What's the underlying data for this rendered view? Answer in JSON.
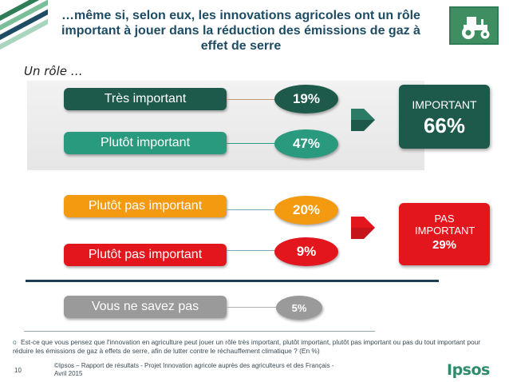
{
  "title": "…même si, selon eux, les innovations agricoles ont un rôle important à jouer dans la réduction des émissions de gaz à effet de serre",
  "subtitle": "Un rôle …",
  "icon": "tractor-icon",
  "chart_data": {
    "type": "table",
    "rows": [
      {
        "label": "Très important",
        "value": 19,
        "display": "19",
        "unit": "%",
        "color": "#1e5a4b"
      },
      {
        "label": "Plutôt important",
        "value": 47,
        "display": "47",
        "unit": "%",
        "color": "#2a9a7e"
      },
      {
        "label": "Plutôt pas important",
        "value": 20,
        "display": "20%",
        "unit": "",
        "color": "#f39a11"
      },
      {
        "label": "Plutôt pas important",
        "value": 9,
        "display": "9%",
        "unit": "",
        "color": "#e3161e"
      },
      {
        "label": "Vous ne savez pas",
        "value": 5,
        "display": "5%",
        "unit": "",
        "color": "#9a9a9a"
      }
    ],
    "totals": [
      {
        "label": "IMPORTANT",
        "value": "66%",
        "color": "#1e5a4b"
      },
      {
        "label": "PAS IMPORTANT",
        "value": "29%",
        "color": "#e3161e"
      }
    ]
  },
  "question": {
    "bullet": "o",
    "text": "Est-ce que vous pensez que l'innovation en agriculture peut jouer un rôle très important, plutôt important, plutôt pas important ou pas du tout important pour réduire les émissions de gaz à effets de serre, afin de lutter contre le réchauffement climatique ? (En %)"
  },
  "footer": {
    "page": "10",
    "text": "©Ipsos – Rapport de résultats - Projet Innovation agricole auprès des agriculteurs et des Français - Avril 2015",
    "logo": "Ipsos"
  }
}
